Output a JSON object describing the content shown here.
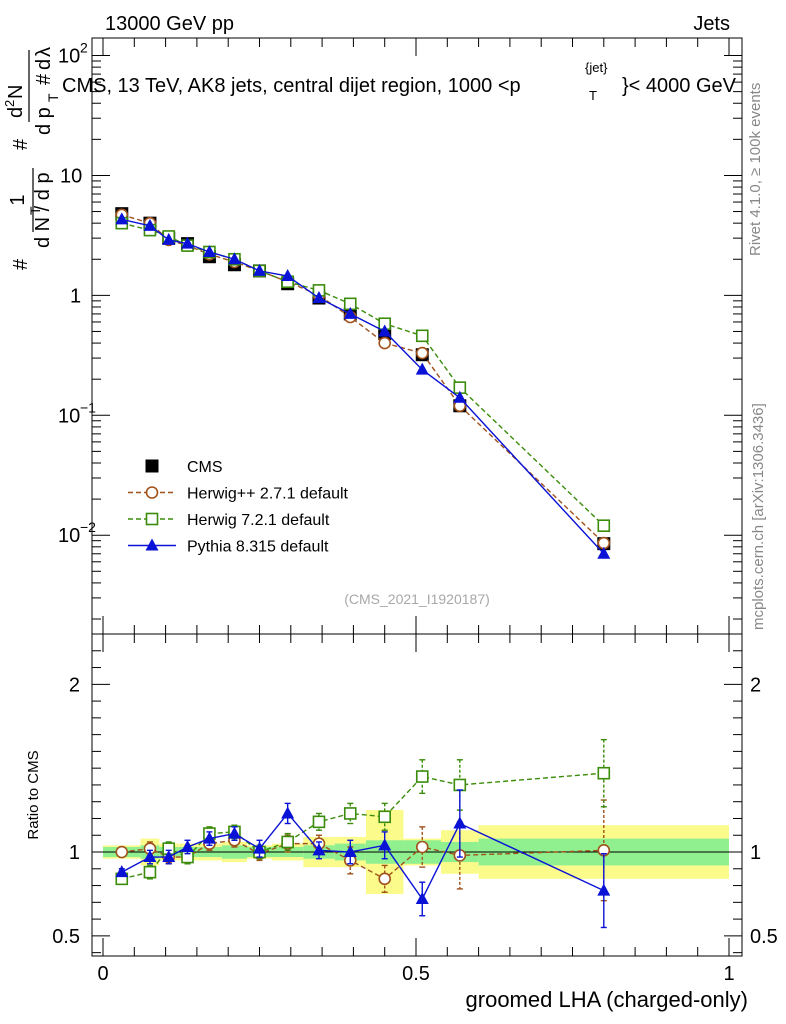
{
  "header": {
    "left": "13000 GeV pp",
    "right": "Jets"
  },
  "side_text": {
    "rivet": "Rivet 4.1.0, ≥ 100k events",
    "mcplots": "mcplots.cern.ch [arXiv:1306.3436]"
  },
  "watermark": "(CMS_2021_I1920187)",
  "chart_data": [
    {
      "type": "line",
      "role": "main",
      "title": "CMS, 13 TeV, AK8 jets, central dijet region, 1000 <p_T^{jet}< 4000 GeV",
      "title_parts": {
        "prefix": "CMS, 13 TeV, AK8 jets, central dijet region, 1000 <p",
        "sub": "T",
        "sup": "{jet}",
        "suffix": "}< 4000 GeV"
      },
      "ylabel": "1/(dN/dp_T) d²N/(dp_T dλ)",
      "yscale": "log",
      "ylim": [
        0.0015,
        140
      ],
      "xlim": [
        0,
        1
      ],
      "yticks": [
        {
          "value": 0.01,
          "base": "10",
          "exp": "−2"
        },
        {
          "value": 0.1,
          "base": "10",
          "exp": "−1"
        },
        {
          "value": 1,
          "base": "1",
          "exp": ""
        },
        {
          "value": 10,
          "base": "10",
          "exp": ""
        },
        {
          "value": 100,
          "base": "10",
          "exp": "2"
        }
      ],
      "legend_position": "center-left",
      "series": [
        {
          "name": "CMS",
          "color": "#000000",
          "marker": "square-filled",
          "dash": "none",
          "x": [
            0.03,
            0.075,
            0.105,
            0.135,
            0.17,
            0.21,
            0.25,
            0.295,
            0.345,
            0.395,
            0.45,
            0.51,
            0.57,
            0.8
          ],
          "y": [
            4.8,
            4.0,
            3.0,
            2.7,
            2.1,
            1.8,
            1.6,
            1.25,
            0.95,
            0.7,
            0.48,
            0.32,
            0.12,
            0.0085
          ]
        },
        {
          "name": "Herwig++ 2.7.1 default",
          "color": "#a0521b",
          "marker": "circle-open",
          "dash": "5,3",
          "x": [
            0.03,
            0.075,
            0.105,
            0.135,
            0.17,
            0.21,
            0.25,
            0.295,
            0.345,
            0.395,
            0.45,
            0.51,
            0.57,
            0.8
          ],
          "y": [
            4.7,
            4.0,
            2.9,
            2.6,
            2.2,
            1.9,
            1.6,
            1.3,
            1.0,
            0.66,
            0.4,
            0.33,
            0.12,
            0.0086
          ]
        },
        {
          "name": "Herwig 7.2.1 default",
          "color": "#3a8c0a",
          "marker": "square-open",
          "dash": "5,3",
          "x": [
            0.03,
            0.075,
            0.105,
            0.135,
            0.17,
            0.21,
            0.25,
            0.295,
            0.345,
            0.395,
            0.45,
            0.51,
            0.57,
            0.8
          ],
          "y": [
            4.0,
            3.5,
            3.1,
            2.6,
            2.3,
            2.0,
            1.6,
            1.3,
            1.1,
            0.85,
            0.58,
            0.46,
            0.17,
            0.012
          ]
        },
        {
          "name": "Pythia 8.315 default",
          "color": "#0a12d6",
          "marker": "triangle-filled",
          "dash": "none",
          "x": [
            0.03,
            0.075,
            0.105,
            0.135,
            0.17,
            0.21,
            0.25,
            0.295,
            0.345,
            0.395,
            0.45,
            0.51,
            0.57,
            0.8
          ],
          "y": [
            4.3,
            3.8,
            2.9,
            2.7,
            2.3,
            2.0,
            1.6,
            1.45,
            0.95,
            0.7,
            0.5,
            0.24,
            0.14,
            0.007
          ]
        }
      ]
    },
    {
      "type": "line",
      "role": "ratio",
      "xlabel": "groomed LHA (charged-only)",
      "ylabel": "Ratio to CMS",
      "ylim": [
        0.38,
        2.3
      ],
      "xlim": [
        0,
        1
      ],
      "xticks": [
        "0",
        "0.5",
        "1"
      ],
      "xtick_values": [
        0,
        0.5,
        1
      ],
      "yticks": [
        "0.5",
        "1",
        "2"
      ],
      "ytick_values": [
        0.5,
        1,
        2
      ],
      "reference_line": 1.0,
      "uncertainty_bands": {
        "bin_edges": [
          0,
          0.06,
          0.09,
          0.12,
          0.15,
          0.19,
          0.23,
          0.27,
          0.32,
          0.37,
          0.42,
          0.48,
          0.54,
          0.6,
          1.0
        ],
        "inner_low": [
          0.97,
          0.96,
          0.97,
          0.97,
          0.97,
          0.96,
          0.97,
          0.97,
          0.96,
          0.95,
          0.93,
          0.93,
          0.94,
          0.92
        ],
        "inner_high": [
          1.03,
          1.04,
          1.03,
          1.03,
          1.03,
          1.04,
          1.03,
          1.03,
          1.04,
          1.05,
          1.07,
          1.07,
          1.06,
          1.08
        ],
        "outer_low": [
          0.96,
          0.92,
          0.95,
          0.95,
          0.95,
          0.94,
          0.96,
          0.95,
          0.91,
          0.91,
          0.75,
          0.92,
          0.87,
          0.84
        ],
        "outer_high": [
          1.04,
          1.08,
          1.05,
          1.05,
          1.05,
          1.06,
          1.04,
          1.05,
          1.09,
          1.09,
          1.25,
          1.08,
          1.13,
          1.16
        ],
        "inner_color": "#90f090",
        "outer_color": "#fbfb8c"
      },
      "series": [
        {
          "name": "Herwig++ 2.7.1 default",
          "color": "#a0521b",
          "marker": "circle-open",
          "dash": "5,3",
          "x": [
            0.03,
            0.075,
            0.105,
            0.135,
            0.17,
            0.21,
            0.25,
            0.295,
            0.345,
            0.395,
            0.45,
            0.51,
            0.57,
            0.8
          ],
          "y": [
            1.0,
            1.02,
            0.97,
            0.97,
            1.05,
            1.07,
            0.99,
            1.05,
            1.05,
            0.95,
            0.84,
            1.03,
            0.98,
            1.01
          ],
          "err": [
            0.02,
            0.04,
            0.04,
            0.04,
            0.04,
            0.04,
            0.04,
            0.05,
            0.05,
            0.08,
            0.08,
            0.12,
            0.2,
            0.3
          ]
        },
        {
          "name": "Herwig 7.2.1 default",
          "color": "#3a8c0a",
          "marker": "square-open",
          "dash": "5,3",
          "x": [
            0.03,
            0.075,
            0.105,
            0.135,
            0.17,
            0.21,
            0.25,
            0.295,
            0.345,
            0.395,
            0.45,
            0.51,
            0.57,
            0.8
          ],
          "y": [
            0.84,
            0.88,
            1.02,
            0.97,
            1.11,
            1.12,
            1.0,
            1.06,
            1.18,
            1.23,
            1.21,
            1.45,
            1.4,
            1.47
          ],
          "err": [
            0.02,
            0.04,
            0.04,
            0.04,
            0.04,
            0.04,
            0.04,
            0.05,
            0.05,
            0.06,
            0.08,
            0.1,
            0.15,
            0.2
          ]
        },
        {
          "name": "Pythia 8.315 default",
          "color": "#0a12d6",
          "marker": "triangle-filled",
          "dash": "none",
          "x": [
            0.03,
            0.075,
            0.105,
            0.135,
            0.17,
            0.21,
            0.25,
            0.295,
            0.345,
            0.395,
            0.45,
            0.51,
            0.57,
            0.8
          ],
          "y": [
            0.88,
            0.97,
            0.97,
            1.03,
            1.08,
            1.11,
            1.02,
            1.23,
            1.01,
            1.0,
            1.04,
            0.72,
            1.17,
            0.77
          ],
          "err": [
            0.02,
            0.04,
            0.04,
            0.04,
            0.04,
            0.04,
            0.05,
            0.06,
            0.05,
            0.07,
            0.08,
            0.1,
            0.2,
            0.22
          ]
        }
      ]
    }
  ]
}
